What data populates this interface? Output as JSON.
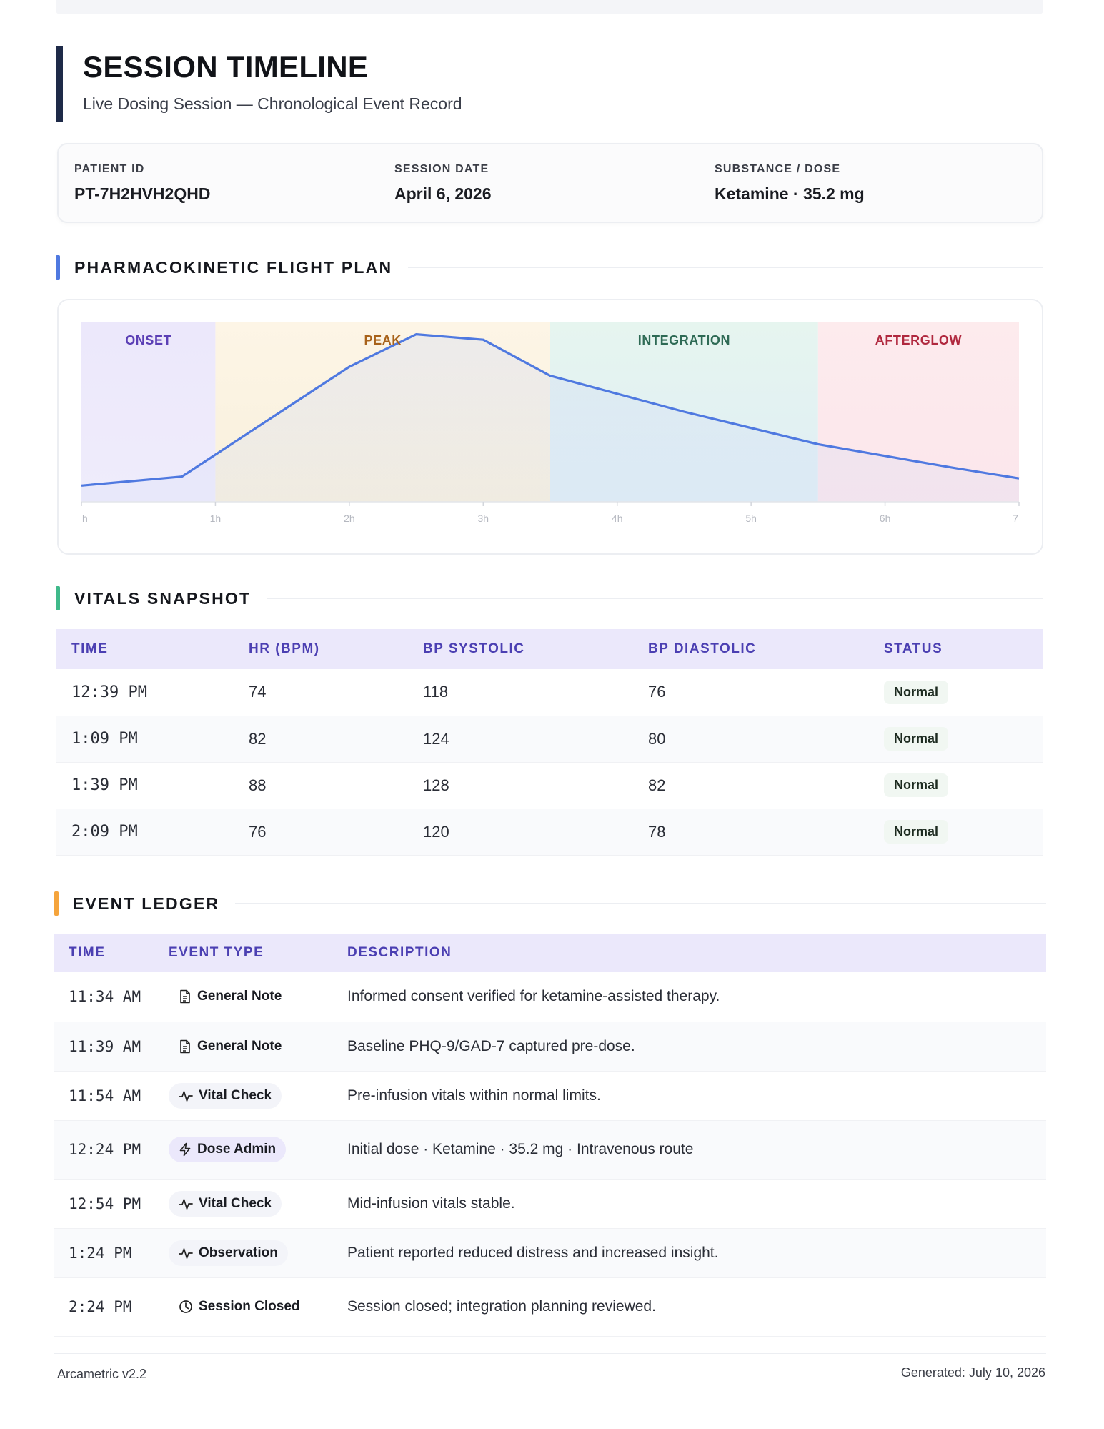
{
  "header": {
    "title": "SESSION TIMELINE",
    "subtitle": "Live Dosing Session — Chronological Event Record"
  },
  "info": {
    "patient_id_label": "PATIENT ID",
    "patient_id": "PT-7H2HVH2QHD",
    "session_date_label": "SESSION DATE",
    "session_date": "April 6, 2026",
    "substance_label": "SUBSTANCE / DOSE",
    "substance": "Ketamine · 35.2 mg"
  },
  "sections": {
    "flight_plan": "PHARMACOKINETIC FLIGHT PLAN",
    "vitals": "VITALS SNAPSHOT",
    "ledger": "EVENT LEDGER"
  },
  "colors": {
    "onset": "#5b3fb5",
    "peak": "#a8621a",
    "integration": "#2e6a55",
    "afterglow": "#b0283e",
    "curve": "#4f79e0"
  },
  "chart_data": {
    "type": "area",
    "phases": [
      {
        "name": "ONSET",
        "start": 0,
        "end": 1
      },
      {
        "name": "PEAK",
        "start": 1,
        "end": 3.5
      },
      {
        "name": "INTEGRATION",
        "start": 3.5,
        "end": 5.5
      },
      {
        "name": "AFTERGLOW",
        "start": 5.5,
        "end": 7
      }
    ],
    "x": [
      0,
      0.75,
      2,
      2.5,
      3,
      3.5,
      4.5,
      5.5,
      6.5,
      7
    ],
    "y": [
      0.09,
      0.14,
      0.75,
      0.93,
      0.9,
      0.7,
      0.5,
      0.32,
      0.19,
      0.13
    ],
    "xlim": [
      0,
      7
    ],
    "ylim": [
      0,
      1
    ],
    "x_tick_values": [
      0,
      1,
      2,
      3,
      4,
      5,
      6,
      7
    ],
    "x_tick_labels": [
      "h",
      "1h",
      "2h",
      "3h",
      "4h",
      "5h",
      "6h",
      "7"
    ],
    "title": "",
    "xlabel": "",
    "ylabel": ""
  },
  "vitals": {
    "headers": [
      "TIME",
      "HR (BPM)",
      "BP SYSTOLIC",
      "BP DIASTOLIC",
      "STATUS"
    ],
    "rows": [
      {
        "time": "12:39 PM",
        "hr": "74",
        "sys": "118",
        "dia": "76",
        "status": "Normal"
      },
      {
        "time": "1:09 PM",
        "hr": "82",
        "sys": "124",
        "dia": "80",
        "status": "Normal"
      },
      {
        "time": "1:39 PM",
        "hr": "88",
        "sys": "128",
        "dia": "82",
        "status": "Normal"
      },
      {
        "time": "2:09 PM",
        "hr": "76",
        "sys": "120",
        "dia": "78",
        "status": "Normal"
      }
    ]
  },
  "ledger": {
    "headers": [
      "TIME",
      "EVENT TYPE",
      "DESCRIPTION"
    ],
    "rows": [
      {
        "time": "11:34 AM",
        "type": "General Note",
        "icon": "document-icon",
        "desc": "Informed consent verified for ketamine-assisted therapy."
      },
      {
        "time": "11:39 AM",
        "type": "General Note",
        "icon": "document-icon",
        "desc": "Baseline PHQ-9/GAD-7 captured pre-dose."
      },
      {
        "time": "11:54 AM",
        "type": "Vital Check",
        "icon": "pulse-icon",
        "desc": "Pre-infusion vitals within normal limits."
      },
      {
        "time": "12:24 PM",
        "type": "Dose Admin",
        "icon": "bolt-icon",
        "desc": "Initial dose · Ketamine · 35.2 mg · Intravenous route"
      },
      {
        "time": "12:54 PM",
        "type": "Vital Check",
        "icon": "pulse-icon",
        "desc": "Mid-infusion vitals stable."
      },
      {
        "time": "1:24 PM",
        "type": "Observation",
        "icon": "pulse-icon",
        "desc": "Patient reported reduced distress and increased insight."
      },
      {
        "time": "2:24 PM",
        "type": "Session Closed",
        "icon": "clock-icon",
        "desc": "Session closed; integration planning reviewed."
      }
    ]
  },
  "footer": {
    "version": "Arcametric v2.2",
    "generated": "Generated: July 10, 2026"
  }
}
